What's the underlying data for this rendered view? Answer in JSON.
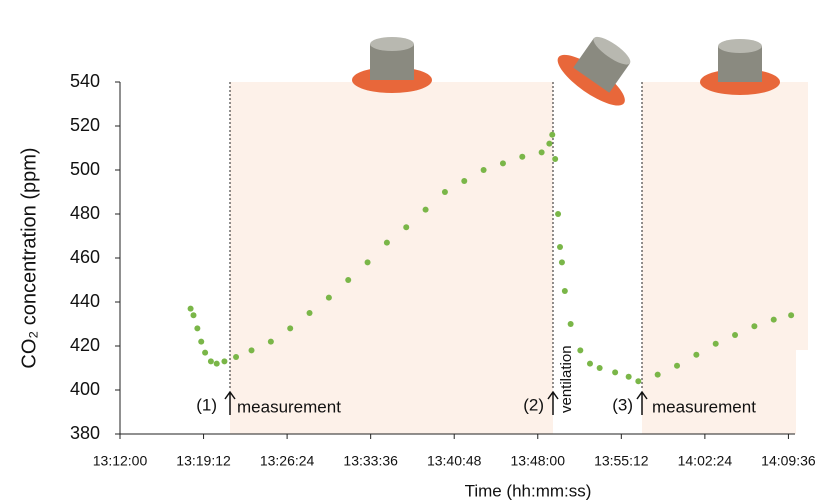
{
  "chart_data": {
    "type": "scatter",
    "x_label": "Time (hh:mm:ss)",
    "y_label": "CO₂ concentration (ppm)",
    "annotations": [
      "(1)",
      "measurement",
      "(2)",
      "ventilation",
      "(3)",
      "measurement"
    ],
    "color": "#7ab648",
    "xlim": [
      47520,
      51010
    ],
    "xticks": [
      {
        "value": 47520,
        "label": "13:12:00"
      },
      {
        "value": 47952,
        "label": "13:19:12"
      },
      {
        "value": 48384,
        "label": "13:26:24"
      },
      {
        "value": 48816,
        "label": "13:33:36"
      },
      {
        "value": 49248,
        "label": "13:40:48"
      },
      {
        "value": 49680,
        "label": "13:48:00"
      },
      {
        "value": 50112,
        "label": "13:55:12"
      },
      {
        "value": 50544,
        "label": "14:02:24"
      },
      {
        "value": 50976,
        "label": "14:09:36"
      }
    ],
    "ylim": [
      380,
      540
    ],
    "yticks": [
      380,
      400,
      420,
      440,
      460,
      480,
      500,
      520,
      540
    ],
    "x": [
      47885,
      47900,
      47920,
      47940,
      47960,
      47990,
      48020,
      48060,
      48120,
      48200,
      48300,
      48400,
      48500,
      48600,
      48700,
      48800,
      48900,
      49000,
      49100,
      49200,
      49300,
      49400,
      49500,
      49600,
      49700,
      49740,
      49755,
      49770,
      49785,
      49795,
      49805,
      49820,
      49850,
      49900,
      49950,
      50000,
      50080,
      50150,
      50200,
      50300,
      50400,
      50500,
      50600,
      50700,
      50800,
      50900,
      50990
    ],
    "values": [
      437,
      434,
      428,
      422,
      417,
      413,
      412,
      413,
      415,
      418,
      422,
      428,
      435,
      442,
      450,
      458,
      467,
      474,
      482,
      490,
      495,
      500,
      503,
      506,
      508,
      512,
      516,
      505,
      480,
      465,
      458,
      445,
      430,
      418,
      412,
      410,
      408,
      406,
      404,
      407,
      411,
      416,
      421,
      425,
      429,
      432,
      434
    ]
  }
}
